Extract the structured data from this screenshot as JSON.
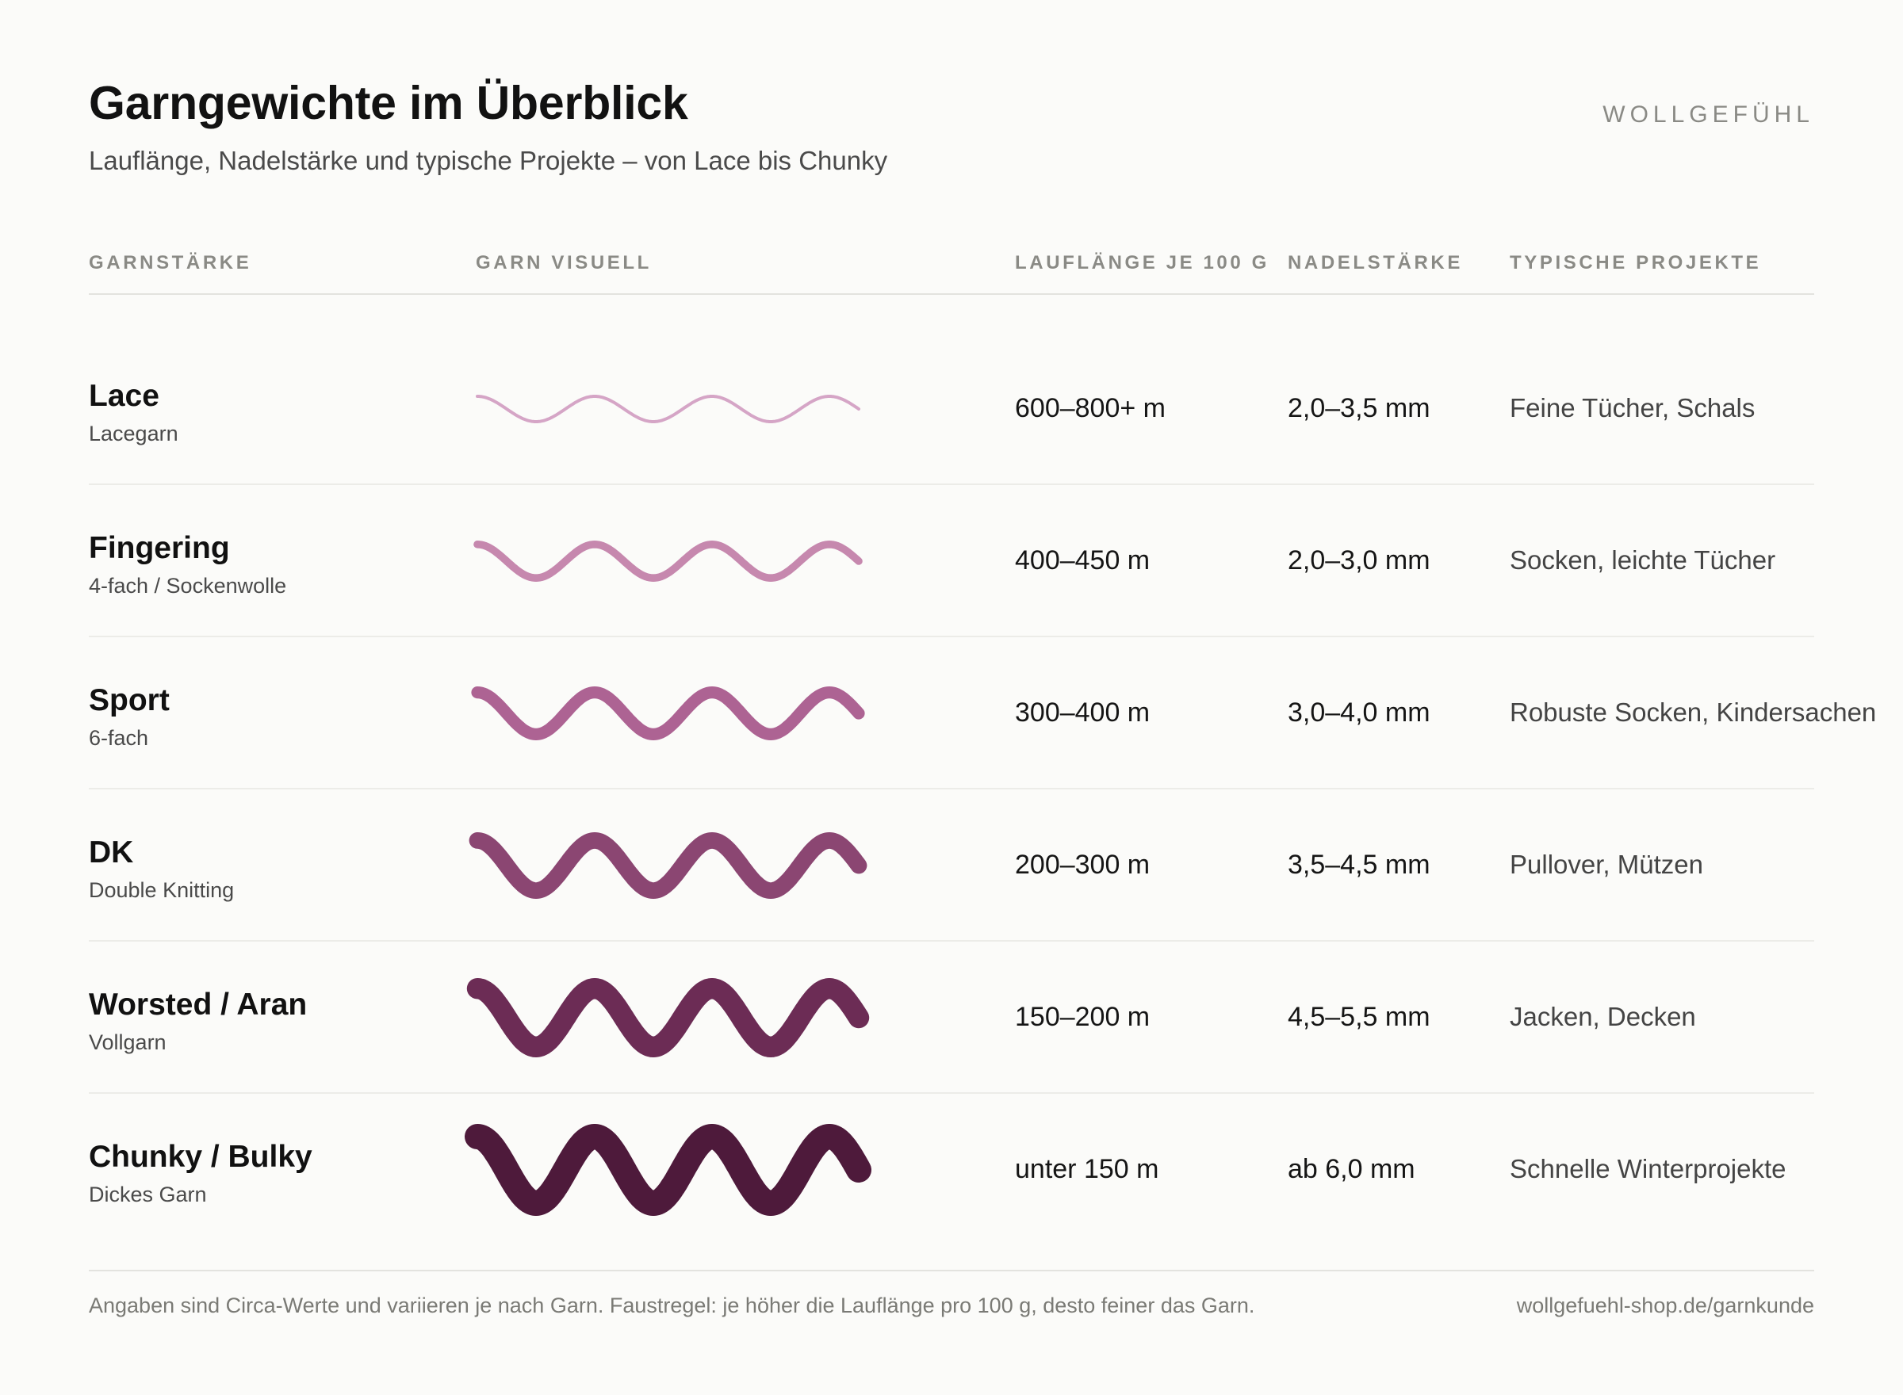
{
  "header": {
    "title": "Garngewichte im Überblick",
    "subtitle": "Lauflänge, Nadelstärke und typische Projekte – von Lace bis Chunky",
    "brand": "WOLLGEFÜHL"
  },
  "columns": {
    "weight": "GARNSTÄRKE",
    "visual": "GARN VISUELL",
    "yardage": "LAUFLÄNGE JE 100 G",
    "needle": "NADELSTÄRKE",
    "projects": "TYPISCHE PROJEKTE"
  },
  "rows": [
    {
      "name": "Lace",
      "alt": "Lacegarn",
      "yardage": "600–800+ m",
      "needle": "2,0–3,5 mm",
      "projects": "Feine Tücher, Schals",
      "color": "#d5a5c6",
      "thickness_level": 1
    },
    {
      "name": "Fingering",
      "alt": "4-fach / Sockenwolle",
      "yardage": "400–450 m",
      "needle": "2,0–3,0 mm",
      "projects": "Socken, leichte Tücher",
      "color": "#c688ae",
      "thickness_level": 2
    },
    {
      "name": "Sport",
      "alt": "6-fach",
      "yardage": "300–400 m",
      "needle": "3,0–4,0 mm",
      "projects": "Robuste Socken, Kindersachen",
      "color": "#ad6393",
      "thickness_level": 3
    },
    {
      "name": "DK",
      "alt": "Double Knitting",
      "yardage": "200–300 m",
      "needle": "3,5–4,5 mm",
      "projects": "Pullover, Mützen",
      "color": "#8b4672",
      "thickness_level": 4
    },
    {
      "name": "Worsted / Aran",
      "alt": "Vollgarn",
      "yardage": "150–200 m",
      "needle": "4,5–5,5 mm",
      "projects": "Jacken, Decken",
      "color": "#6c2c55",
      "thickness_level": 5
    },
    {
      "name": "Chunky / Bulky",
      "alt": "Dickes Garn",
      "yardage": "unter 150 m",
      "needle": "ab 6,0 mm",
      "projects": "Schnelle Winterprojekte",
      "color": "#4e1a3b",
      "thickness_level": 6
    }
  ],
  "footer": {
    "note": "Angaben sind Circa-Werte und variieren je nach Garn. Faustregel: je höher die Lauflänge pro 100 g, desto feiner das Garn.",
    "url": "wollgefuehl-shop.de/garnkunde"
  }
}
